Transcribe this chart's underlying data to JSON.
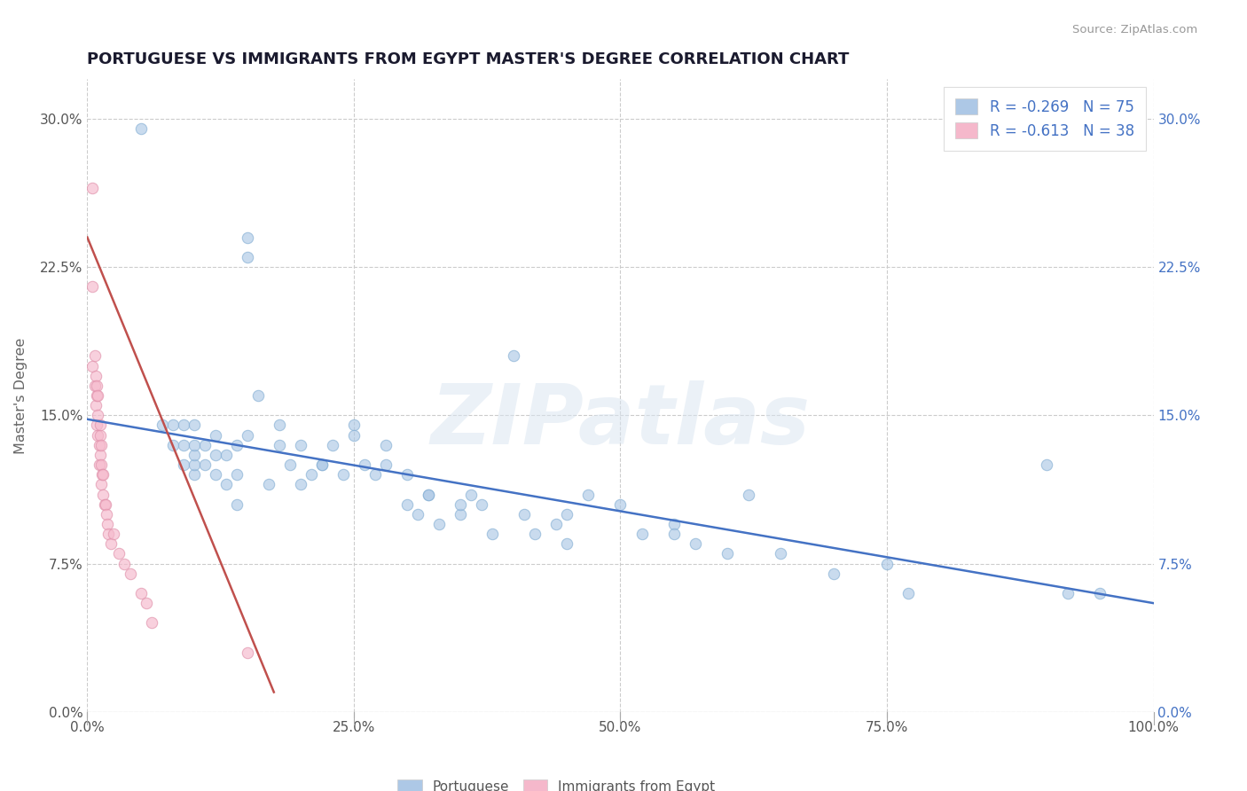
{
  "title": "PORTUGUESE VS IMMIGRANTS FROM EGYPT MASTER'S DEGREE CORRELATION CHART",
  "source": "Source: ZipAtlas.com",
  "ylabel": "Master's Degree",
  "watermark": "ZIPatlas",
  "xlim": [
    0.0,
    1.0
  ],
  "ylim": [
    0.0,
    0.32
  ],
  "xticks": [
    0.0,
    0.25,
    0.5,
    0.75,
    1.0
  ],
  "xtick_labels": [
    "0.0%",
    "25.0%",
    "50.0%",
    "75.0%",
    "100.0%"
  ],
  "yticks": [
    0.0,
    0.075,
    0.15,
    0.225,
    0.3
  ],
  "ytick_labels": [
    "0.0%",
    "7.5%",
    "15.0%",
    "22.5%",
    "30.0%"
  ],
  "blue_color": "#adc8e6",
  "blue_edge": "#85afd4",
  "pink_color": "#f5b8cb",
  "pink_edge": "#e090aa",
  "blue_line_color": "#4472c4",
  "pink_line_color": "#c0504d",
  "R_blue": -0.269,
  "N_blue": 75,
  "R_pink": -0.613,
  "N_pink": 38,
  "legend_label_blue": "Portuguese",
  "legend_label_pink": "Immigrants from Egypt",
  "blue_points_x": [
    0.05,
    0.15,
    0.07,
    0.08,
    0.08,
    0.09,
    0.09,
    0.09,
    0.1,
    0.1,
    0.1,
    0.1,
    0.1,
    0.11,
    0.11,
    0.12,
    0.12,
    0.12,
    0.13,
    0.13,
    0.14,
    0.14,
    0.14,
    0.15,
    0.15,
    0.16,
    0.17,
    0.18,
    0.18,
    0.19,
    0.2,
    0.2,
    0.21,
    0.22,
    0.23,
    0.24,
    0.25,
    0.26,
    0.27,
    0.28,
    0.3,
    0.3,
    0.31,
    0.32,
    0.33,
    0.35,
    0.36,
    0.37,
    0.38,
    0.4,
    0.41,
    0.42,
    0.44,
    0.45,
    0.47,
    0.5,
    0.52,
    0.55,
    0.57,
    0.6,
    0.62,
    0.65,
    0.7,
    0.75,
    0.77,
    0.9,
    0.92,
    0.95,
    0.22,
    0.25,
    0.28,
    0.32,
    0.35,
    0.45,
    0.55
  ],
  "blue_points_y": [
    0.295,
    0.14,
    0.145,
    0.135,
    0.145,
    0.125,
    0.135,
    0.145,
    0.12,
    0.125,
    0.13,
    0.135,
    0.145,
    0.125,
    0.135,
    0.12,
    0.13,
    0.14,
    0.115,
    0.13,
    0.105,
    0.12,
    0.135,
    0.23,
    0.24,
    0.16,
    0.115,
    0.135,
    0.145,
    0.125,
    0.115,
    0.135,
    0.12,
    0.125,
    0.135,
    0.12,
    0.145,
    0.125,
    0.12,
    0.135,
    0.105,
    0.12,
    0.1,
    0.11,
    0.095,
    0.1,
    0.11,
    0.105,
    0.09,
    0.18,
    0.1,
    0.09,
    0.095,
    0.085,
    0.11,
    0.105,
    0.09,
    0.095,
    0.085,
    0.08,
    0.11,
    0.08,
    0.07,
    0.075,
    0.06,
    0.125,
    0.06,
    0.06,
    0.125,
    0.14,
    0.125,
    0.11,
    0.105,
    0.1,
    0.09
  ],
  "pink_points_x": [
    0.005,
    0.005,
    0.007,
    0.007,
    0.008,
    0.008,
    0.009,
    0.009,
    0.009,
    0.01,
    0.01,
    0.01,
    0.011,
    0.011,
    0.012,
    0.012,
    0.012,
    0.013,
    0.013,
    0.013,
    0.014,
    0.015,
    0.015,
    0.016,
    0.017,
    0.018,
    0.019,
    0.02,
    0.022,
    0.025,
    0.03,
    0.035,
    0.04,
    0.05,
    0.055,
    0.06,
    0.005,
    0.15
  ],
  "pink_points_y": [
    0.175,
    0.215,
    0.165,
    0.18,
    0.155,
    0.17,
    0.145,
    0.16,
    0.165,
    0.14,
    0.15,
    0.16,
    0.125,
    0.135,
    0.13,
    0.14,
    0.145,
    0.115,
    0.125,
    0.135,
    0.12,
    0.11,
    0.12,
    0.105,
    0.105,
    0.1,
    0.095,
    0.09,
    0.085,
    0.09,
    0.08,
    0.075,
    0.07,
    0.06,
    0.055,
    0.045,
    0.265,
    0.03
  ],
  "blue_trend_x": [
    0.0,
    1.0
  ],
  "blue_trend_y": [
    0.148,
    0.055
  ],
  "pink_trend_x": [
    0.0,
    0.175
  ],
  "pink_trend_y": [
    0.24,
    0.01
  ],
  "title_fontsize": 13,
  "tick_fontsize": 11,
  "grid_color": "#cccccc",
  "background_color": "#ffffff",
  "marker_size": 80,
  "marker_alpha": 0.65
}
